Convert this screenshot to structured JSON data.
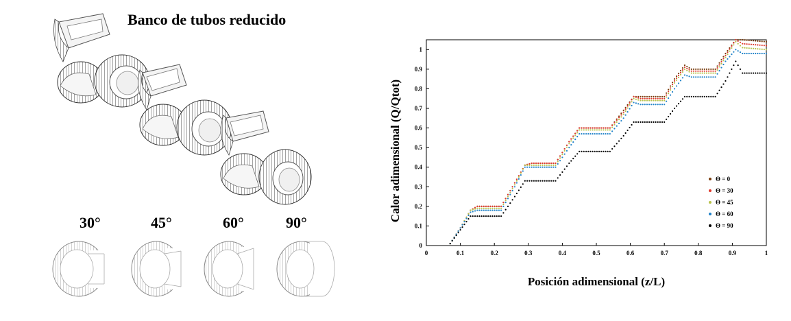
{
  "left_panel": {
    "title": "Banco de tubos reducido",
    "angles": [
      "30°",
      "45°",
      "60°",
      "90°"
    ]
  },
  "chart_data": {
    "type": "scatter",
    "title": "",
    "xlabel": "Posición adimensional (z/L)",
    "ylabel": "Calor adimensional (Q/Qtot)",
    "xlim": [
      0,
      1
    ],
    "ylim": [
      0,
      1.05
    ],
    "x_ticks": [
      "0",
      "0.1",
      "0.2",
      "0.3",
      "0.4",
      "0.5",
      "0.6",
      "0.7",
      "0.8",
      "0.9",
      "1"
    ],
    "y_ticks": [
      "0",
      "0.1",
      "0.2",
      "0.3",
      "0.4",
      "0.5",
      "0.6",
      "0.7",
      "0.8",
      "0.9",
      "1"
    ],
    "legend_position": "bottom-right",
    "grid": false,
    "series": [
      {
        "name": "Θ = 0",
        "color": "#7a3d0f",
        "x": [
          0.07,
          0.1,
          0.13,
          0.15,
          0.22,
          0.26,
          0.29,
          0.31,
          0.38,
          0.42,
          0.45,
          0.47,
          0.54,
          0.58,
          0.61,
          0.63,
          0.7,
          0.73,
          0.76,
          0.78,
          0.85,
          0.88,
          0.91,
          0.93,
          1.0
        ],
        "y": [
          0.01,
          0.09,
          0.18,
          0.2,
          0.2,
          0.32,
          0.41,
          0.42,
          0.42,
          0.53,
          0.6,
          0.6,
          0.6,
          0.69,
          0.76,
          0.76,
          0.76,
          0.85,
          0.92,
          0.9,
          0.9,
          0.98,
          1.05,
          1.05,
          1.04
        ]
      },
      {
        "name": "Θ = 30",
        "color": "#e03a2e",
        "x": [
          0.07,
          0.1,
          0.13,
          0.15,
          0.22,
          0.26,
          0.29,
          0.31,
          0.38,
          0.42,
          0.45,
          0.47,
          0.54,
          0.58,
          0.61,
          0.63,
          0.7,
          0.73,
          0.76,
          0.78,
          0.85,
          0.88,
          0.91,
          0.93,
          1.0
        ],
        "y": [
          0.01,
          0.09,
          0.18,
          0.2,
          0.2,
          0.32,
          0.41,
          0.42,
          0.42,
          0.53,
          0.6,
          0.6,
          0.6,
          0.68,
          0.76,
          0.75,
          0.75,
          0.84,
          0.91,
          0.89,
          0.89,
          0.97,
          1.05,
          1.03,
          1.02
        ]
      },
      {
        "name": "Θ = 45",
        "color": "#b7c24a",
        "x": [
          0.07,
          0.1,
          0.13,
          0.15,
          0.22,
          0.26,
          0.29,
          0.31,
          0.38,
          0.42,
          0.45,
          0.47,
          0.54,
          0.58,
          0.61,
          0.63,
          0.7,
          0.73,
          0.76,
          0.78,
          0.85,
          0.88,
          0.91,
          0.93,
          1.0
        ],
        "y": [
          0.01,
          0.09,
          0.18,
          0.19,
          0.19,
          0.31,
          0.41,
          0.41,
          0.41,
          0.52,
          0.59,
          0.59,
          0.59,
          0.67,
          0.75,
          0.74,
          0.74,
          0.83,
          0.9,
          0.88,
          0.88,
          0.96,
          1.04,
          1.01,
          1.0
        ]
      },
      {
        "name": "Θ = 60",
        "color": "#1f82c8",
        "x": [
          0.07,
          0.1,
          0.13,
          0.15,
          0.22,
          0.26,
          0.29,
          0.31,
          0.38,
          0.42,
          0.45,
          0.47,
          0.54,
          0.58,
          0.61,
          0.63,
          0.7,
          0.73,
          0.76,
          0.78,
          0.85,
          0.88,
          0.91,
          0.93,
          1.0
        ],
        "y": [
          0.01,
          0.09,
          0.17,
          0.18,
          0.18,
          0.3,
          0.4,
          0.4,
          0.4,
          0.5,
          0.57,
          0.57,
          0.57,
          0.65,
          0.73,
          0.72,
          0.72,
          0.8,
          0.87,
          0.86,
          0.86,
          0.94,
          1.0,
          0.98,
          0.98
        ]
      },
      {
        "name": "Θ = 90",
        "color": "#000000",
        "x": [
          0.07,
          0.1,
          0.13,
          0.15,
          0.22,
          0.26,
          0.29,
          0.31,
          0.38,
          0.42,
          0.45,
          0.47,
          0.54,
          0.58,
          0.61,
          0.63,
          0.7,
          0.73,
          0.76,
          0.78,
          0.85,
          0.88,
          0.91,
          0.93,
          1.0
        ],
        "y": [
          0.01,
          0.08,
          0.15,
          0.15,
          0.15,
          0.25,
          0.33,
          0.33,
          0.33,
          0.42,
          0.48,
          0.48,
          0.48,
          0.56,
          0.63,
          0.63,
          0.63,
          0.7,
          0.76,
          0.76,
          0.76,
          0.84,
          0.94,
          0.88,
          0.88
        ]
      }
    ]
  }
}
